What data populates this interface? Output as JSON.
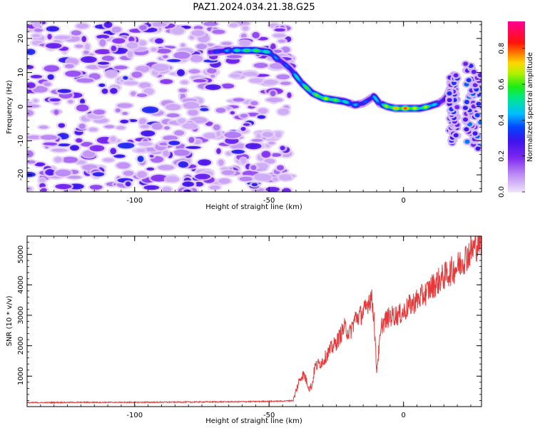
{
  "title": "PAZ1.2024.034.21.38.G25",
  "colors": {
    "snr_line": "#e8383a",
    "axis": "#000000",
    "background": "#ffffff"
  },
  "chart_data": [
    {
      "type": "heatmap",
      "xlabel": "Height of straight line (km)",
      "ylabel": "Frequency (Hz)",
      "xlim": [
        -140,
        29
      ],
      "ylim": [
        -25,
        25
      ],
      "xticks": [
        -100,
        -50,
        0
      ],
      "yticks": [
        -20,
        -10,
        0,
        10,
        20
      ],
      "colorbar": {
        "label": "Normalized spectral amplitude",
        "range": [
          0,
          0.95
        ],
        "ticks": [
          0.0,
          0.2,
          0.4,
          0.6,
          0.8
        ],
        "colormap": "rainbow (violet to magenta)",
        "placement": "right"
      },
      "noise_region_x": [
        -140,
        -42
      ],
      "ridge": {
        "x": [
          -72,
          -65,
          -60,
          -55,
          -50,
          -47,
          -45,
          -42,
          -40,
          -38,
          -36,
          -34,
          -30,
          -26,
          -22,
          -18,
          -15,
          -13,
          -11,
          -9,
          -6,
          -3,
          0,
          3,
          6,
          9,
          11,
          13,
          15,
          16,
          17
        ],
        "frequency": [
          16,
          16.5,
          16.5,
          16.5,
          16,
          14,
          13,
          11,
          9,
          7,
          5.5,
          4,
          2.5,
          2,
          1.5,
          0.5,
          1,
          2,
          3,
          1,
          0,
          -0.5,
          -0.5,
          -0.5,
          -0.5,
          0,
          0.5,
          1,
          2,
          3,
          5
        ],
        "amplitude": [
          0.35,
          0.5,
          0.65,
          0.7,
          0.6,
          0.45,
          0.4,
          0.45,
          0.55,
          0.6,
          0.7,
          0.65,
          0.8,
          0.75,
          0.6,
          0.5,
          0.45,
          0.4,
          0.55,
          0.5,
          0.8,
          0.85,
          0.95,
          0.9,
          0.7,
          0.8,
          0.6,
          0.45,
          0.35,
          0.3,
          0.25
        ]
      },
      "right_features": [
        {
          "x": [
            17,
            20
          ],
          "frequency": [
            -10,
            10
          ],
          "amplitude": 0.3
        },
        {
          "x": [
            23,
            29
          ],
          "frequency": [
            -12,
            12
          ],
          "amplitude": 0.35
        }
      ]
    },
    {
      "type": "line",
      "xlabel": "Height of straight line (km)",
      "ylabel": "SNR (10 * v/v)",
      "xlim": [
        -140,
        29
      ],
      "ylim": [
        0,
        5600
      ],
      "xticks": [
        -100,
        -50,
        0
      ],
      "yticks": [
        1000,
        2000,
        3000,
        4000,
        5000
      ],
      "series": [
        {
          "color": "#e8383a",
          "x": [
            -140,
            -120,
            -100,
            -80,
            -60,
            -45,
            -41,
            -40,
            -39,
            -38,
            -37,
            -35,
            -34,
            -33,
            -30,
            -27,
            -25,
            -22,
            -20,
            -18,
            -16,
            -14,
            -13,
            -12,
            -11,
            -10.5,
            -10,
            -9,
            -8,
            -6,
            -4,
            -2,
            0,
            2,
            5,
            8,
            10,
            14,
            17,
            20,
            22,
            24,
            26,
            28,
            29
          ],
          "y": [
            130,
            140,
            140,
            150,
            160,
            180,
            200,
            500,
            800,
            1000,
            1050,
            600,
            700,
            1300,
            1500,
            1900,
            2100,
            2600,
            2400,
            2900,
            3000,
            3200,
            3500,
            3600,
            3000,
            2000,
            1200,
            2000,
            2700,
            2900,
            3000,
            3000,
            3100,
            3300,
            3500,
            3700,
            3900,
            4200,
            4400,
            4600,
            4800,
            5000,
            5200,
            5400,
            5500
          ]
        }
      ]
    }
  ]
}
